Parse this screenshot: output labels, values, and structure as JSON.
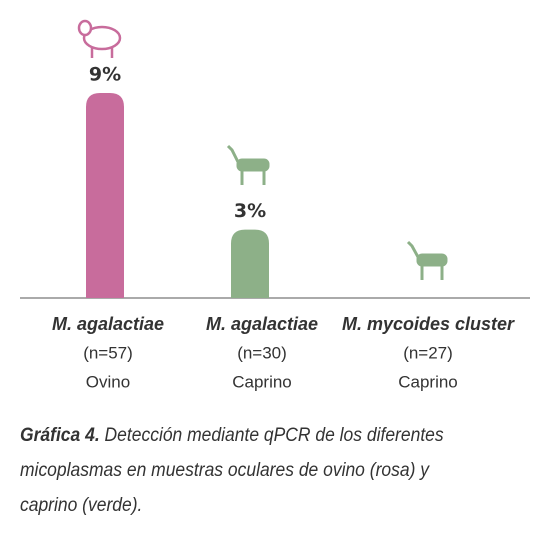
{
  "chart_data": {
    "type": "bar",
    "categories": [
      "M. agalactiae",
      "M. agalactiae",
      "M. mycoides cluster"
    ],
    "sample_sizes": [
      "(n=57)",
      "(n=30)",
      "(n=27)"
    ],
    "hosts": [
      "Ovino",
      "Caprino",
      "Caprino"
    ],
    "values": [
      9,
      3,
      0
    ],
    "value_labels": [
      "9%",
      "3%",
      null
    ],
    "colors": [
      "#c86c9c",
      "#8db088",
      "#8db088"
    ],
    "ylim": [
      0,
      9
    ],
    "caption": {
      "label": "Gráfica 4.",
      "text": "Detección mediante qPCR de los diferentes micoplasmas en muestras oculares de ovino (rosa) y caprino (verde)."
    }
  }
}
